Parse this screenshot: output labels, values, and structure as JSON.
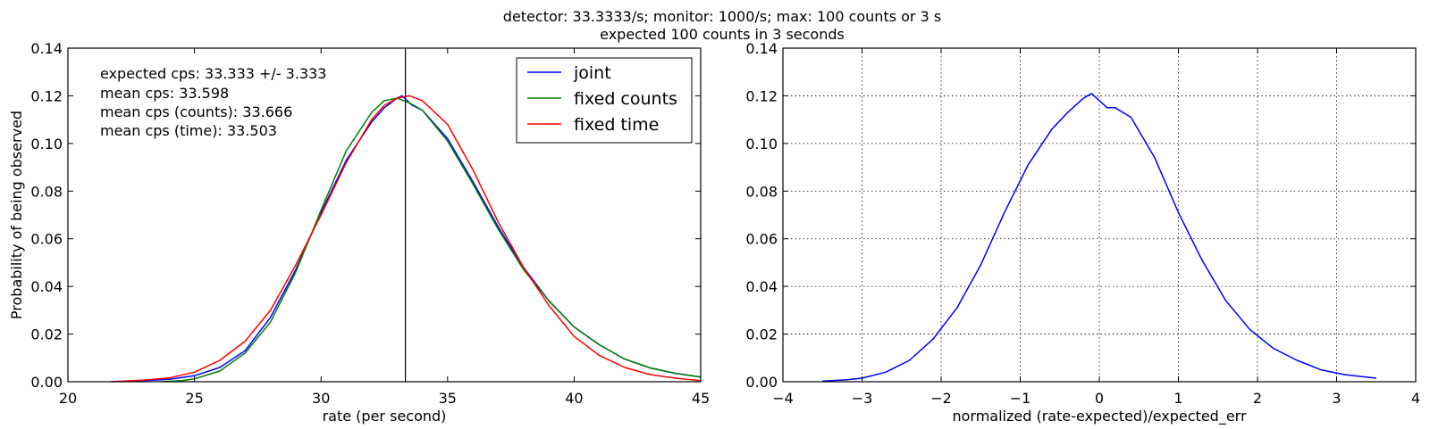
{
  "figure": {
    "title_line1": "detector: 33.3333/s;   monitor: 1000/s;  max: 100 counts or 3 s",
    "title_line2": "expected 100 counts in 3 seconds"
  },
  "chart_data": [
    {
      "type": "line",
      "xlabel": "rate (per second)",
      "ylabel": "Probability of being observed",
      "xlim": [
        20,
        45
      ],
      "ylim": [
        0,
        0.14
      ],
      "xticks": [
        "20",
        "25",
        "30",
        "35",
        "40",
        "45"
      ],
      "yticks": [
        "0.00",
        "0.02",
        "0.04",
        "0.06",
        "0.08",
        "0.10",
        "0.12",
        "0.14"
      ],
      "grid": false,
      "legend_position": "top-right",
      "vline_x": 33.333,
      "annotations": [
        "expected cps: 33.333 +/- 3.333",
        "mean cps: 33.598",
        "mean cps (counts): 33.666",
        "mean cps (time): 33.503"
      ],
      "series": [
        {
          "name": "joint",
          "color": "#0000ff",
          "x": [
            21.7,
            23,
            24,
            25,
            26,
            27,
            28,
            29,
            30,
            31,
            32,
            32.5,
            33,
            33.2,
            33.4,
            33.6,
            34,
            35,
            36,
            37,
            38,
            39,
            40,
            41,
            42,
            43,
            44,
            45
          ],
          "y": [
            0.0,
            0.0005,
            0.001,
            0.0025,
            0.006,
            0.013,
            0.027,
            0.047,
            0.071,
            0.093,
            0.109,
            0.115,
            0.119,
            0.12,
            0.118,
            0.116,
            0.114,
            0.102,
            0.084,
            0.065,
            0.048,
            0.034,
            0.023,
            0.0155,
            0.0095,
            0.0058,
            0.0035,
            0.002
          ]
        },
        {
          "name": "fixed counts",
          "color": "#008000",
          "x": [
            23.7,
            24.5,
            25,
            26,
            27,
            28,
            29,
            30,
            31,
            32,
            32.5,
            33,
            33.5,
            34,
            35,
            36,
            37,
            38,
            39,
            40,
            41,
            42,
            43,
            44,
            45
          ],
          "y": [
            0.0,
            0.0005,
            0.0012,
            0.0045,
            0.012,
            0.025,
            0.046,
            0.072,
            0.097,
            0.113,
            0.118,
            0.119,
            0.117,
            0.114,
            0.101,
            0.083,
            0.064,
            0.047,
            0.034,
            0.023,
            0.0155,
            0.0095,
            0.0058,
            0.0035,
            0.002
          ]
        },
        {
          "name": "fixed time",
          "color": "#ff0000",
          "x": [
            21.7,
            23,
            24,
            25,
            26,
            27,
            28,
            29,
            30,
            31,
            32,
            32.5,
            33,
            33.5,
            34,
            35,
            36,
            37,
            38,
            39,
            40,
            41,
            42,
            43,
            44,
            45
          ],
          "y": [
            0.0,
            0.0007,
            0.0016,
            0.004,
            0.009,
            0.017,
            0.03,
            0.049,
            0.07,
            0.092,
            0.11,
            0.116,
            0.119,
            0.12,
            0.118,
            0.108,
            0.089,
            0.067,
            0.048,
            0.032,
            0.019,
            0.011,
            0.006,
            0.003,
            0.0015,
            0.0005
          ]
        }
      ]
    },
    {
      "type": "line",
      "xlabel": "normalized (rate-expected)/expected_err",
      "ylabel": "",
      "xlim": [
        -4,
        4
      ],
      "ylim": [
        0,
        0.14
      ],
      "xticks": [
        "−4",
        "−3",
        "−2",
        "−1",
        "0",
        "1",
        "2",
        "3",
        "4"
      ],
      "yticks": [
        "0.00",
        "0.02",
        "0.04",
        "0.06",
        "0.08",
        "0.10",
        "0.12",
        "0.14"
      ],
      "grid": true,
      "series": [
        {
          "name": "",
          "color": "#0000ff",
          "x": [
            -3.5,
            -3.2,
            -3.0,
            -2.7,
            -2.4,
            -2.1,
            -1.8,
            -1.5,
            -1.2,
            -0.9,
            -0.6,
            -0.4,
            -0.2,
            -0.1,
            0.0,
            0.1,
            0.2,
            0.4,
            0.7,
            1.0,
            1.3,
            1.6,
            1.9,
            2.2,
            2.5,
            2.8,
            3.1,
            3.5
          ],
          "y": [
            0.0003,
            0.0008,
            0.0015,
            0.004,
            0.009,
            0.018,
            0.031,
            0.049,
            0.071,
            0.091,
            0.106,
            0.113,
            0.119,
            0.121,
            0.118,
            0.115,
            0.115,
            0.111,
            0.094,
            0.071,
            0.051,
            0.034,
            0.022,
            0.014,
            0.009,
            0.005,
            0.003,
            0.0015
          ]
        }
      ]
    }
  ]
}
